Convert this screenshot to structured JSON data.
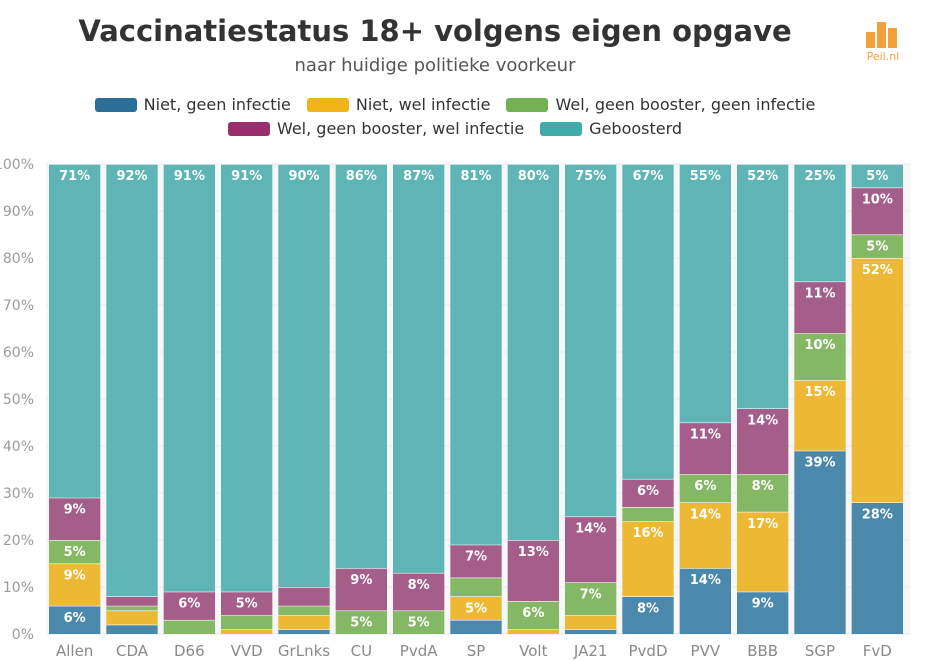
{
  "header": {
    "title": "Vaccinatiestatus 18+ volgens eigen opgave",
    "subtitle": "naar huidige politieke voorkeur",
    "logo_text": "Peil.nl"
  },
  "legend": [
    {
      "label": "Niet, geen infectie",
      "color": "#2b6f98"
    },
    {
      "label": "Niet, wel infectie",
      "color": "#f0b418"
    },
    {
      "label": "Wel, geen booster, geen infectie",
      "color": "#74b054"
    },
    {
      "label": "Wel, geen booster, wel infectie",
      "color": "#9b2f6e"
    },
    {
      "label": "Geboosterd",
      "color": "#3fabaa"
    }
  ],
  "chart_data": {
    "type": "bar",
    "stacked": true,
    "categories": [
      "Allen",
      "CDA",
      "D66",
      "VVD",
      "GrLnks",
      "CU",
      "PvdA",
      "SP",
      "Volt",
      "JA21",
      "PvdD",
      "PVV",
      "BBB",
      "SGP",
      "FvD"
    ],
    "ylim": [
      0,
      100
    ],
    "yticks": [
      "0%",
      "10%",
      "20%",
      "30%",
      "40%",
      "50%",
      "60%",
      "70%",
      "80%",
      "90%",
      "100%"
    ],
    "series": [
      {
        "name": "Niet, geen infectie",
        "color": "#4a88ac",
        "values": [
          6,
          2,
          0,
          0,
          1,
          0,
          0,
          3,
          0,
          1,
          8,
          14,
          9,
          39,
          28
        ],
        "labels": [
          "6%",
          "",
          "",
          "",
          "",
          "",
          "",
          "",
          "",
          "",
          "8%",
          "14%",
          "9%",
          "39%",
          "28%"
        ]
      },
      {
        "name": "Niet, wel infectie",
        "color": "#edb935",
        "values": [
          9,
          3,
          0,
          1,
          3,
          0,
          0,
          5,
          1,
          3,
          16,
          14,
          17,
          15,
          52
        ],
        "labels": [
          "9%",
          "",
          "",
          "",
          "",
          "",
          "",
          "5%",
          "",
          "",
          "16%",
          "14%",
          "17%",
          "15%",
          "52%"
        ]
      },
      {
        "name": "Wel, geen booster, geen infectie",
        "color": "#85b864",
        "values": [
          5,
          1,
          3,
          3,
          2,
          5,
          5,
          4,
          6,
          7,
          3,
          6,
          8,
          10,
          5
        ],
        "labels": [
          "5%",
          "",
          "",
          "",
          "",
          "5%",
          "5%",
          "",
          "6%",
          "7%",
          "",
          "6%",
          "8%",
          "10%",
          "5%"
        ]
      },
      {
        "name": "Wel, geen booster, wel infectie",
        "color": "#a55d89",
        "values": [
          9,
          2,
          6,
          5,
          4,
          9,
          8,
          7,
          13,
          14,
          6,
          11,
          14,
          11,
          10
        ],
        "labels": [
          "9%",
          "",
          "6%",
          "5%",
          "",
          "9%",
          "8%",
          "7%",
          "13%",
          "14%",
          "6%",
          "11%",
          "14%",
          "11%",
          "10%"
        ]
      },
      {
        "name": "Geboosterd",
        "color": "#5fb5b5",
        "values": [
          71,
          92,
          91,
          91,
          90,
          86,
          87,
          81,
          80,
          75,
          67,
          55,
          52,
          25,
          5
        ],
        "labels": [
          "71%",
          "92%",
          "91%",
          "91%",
          "90%",
          "86%",
          "87%",
          "81%",
          "80%",
          "75%",
          "67%",
          "55%",
          "52%",
          "25%",
          "5%"
        ]
      }
    ]
  }
}
